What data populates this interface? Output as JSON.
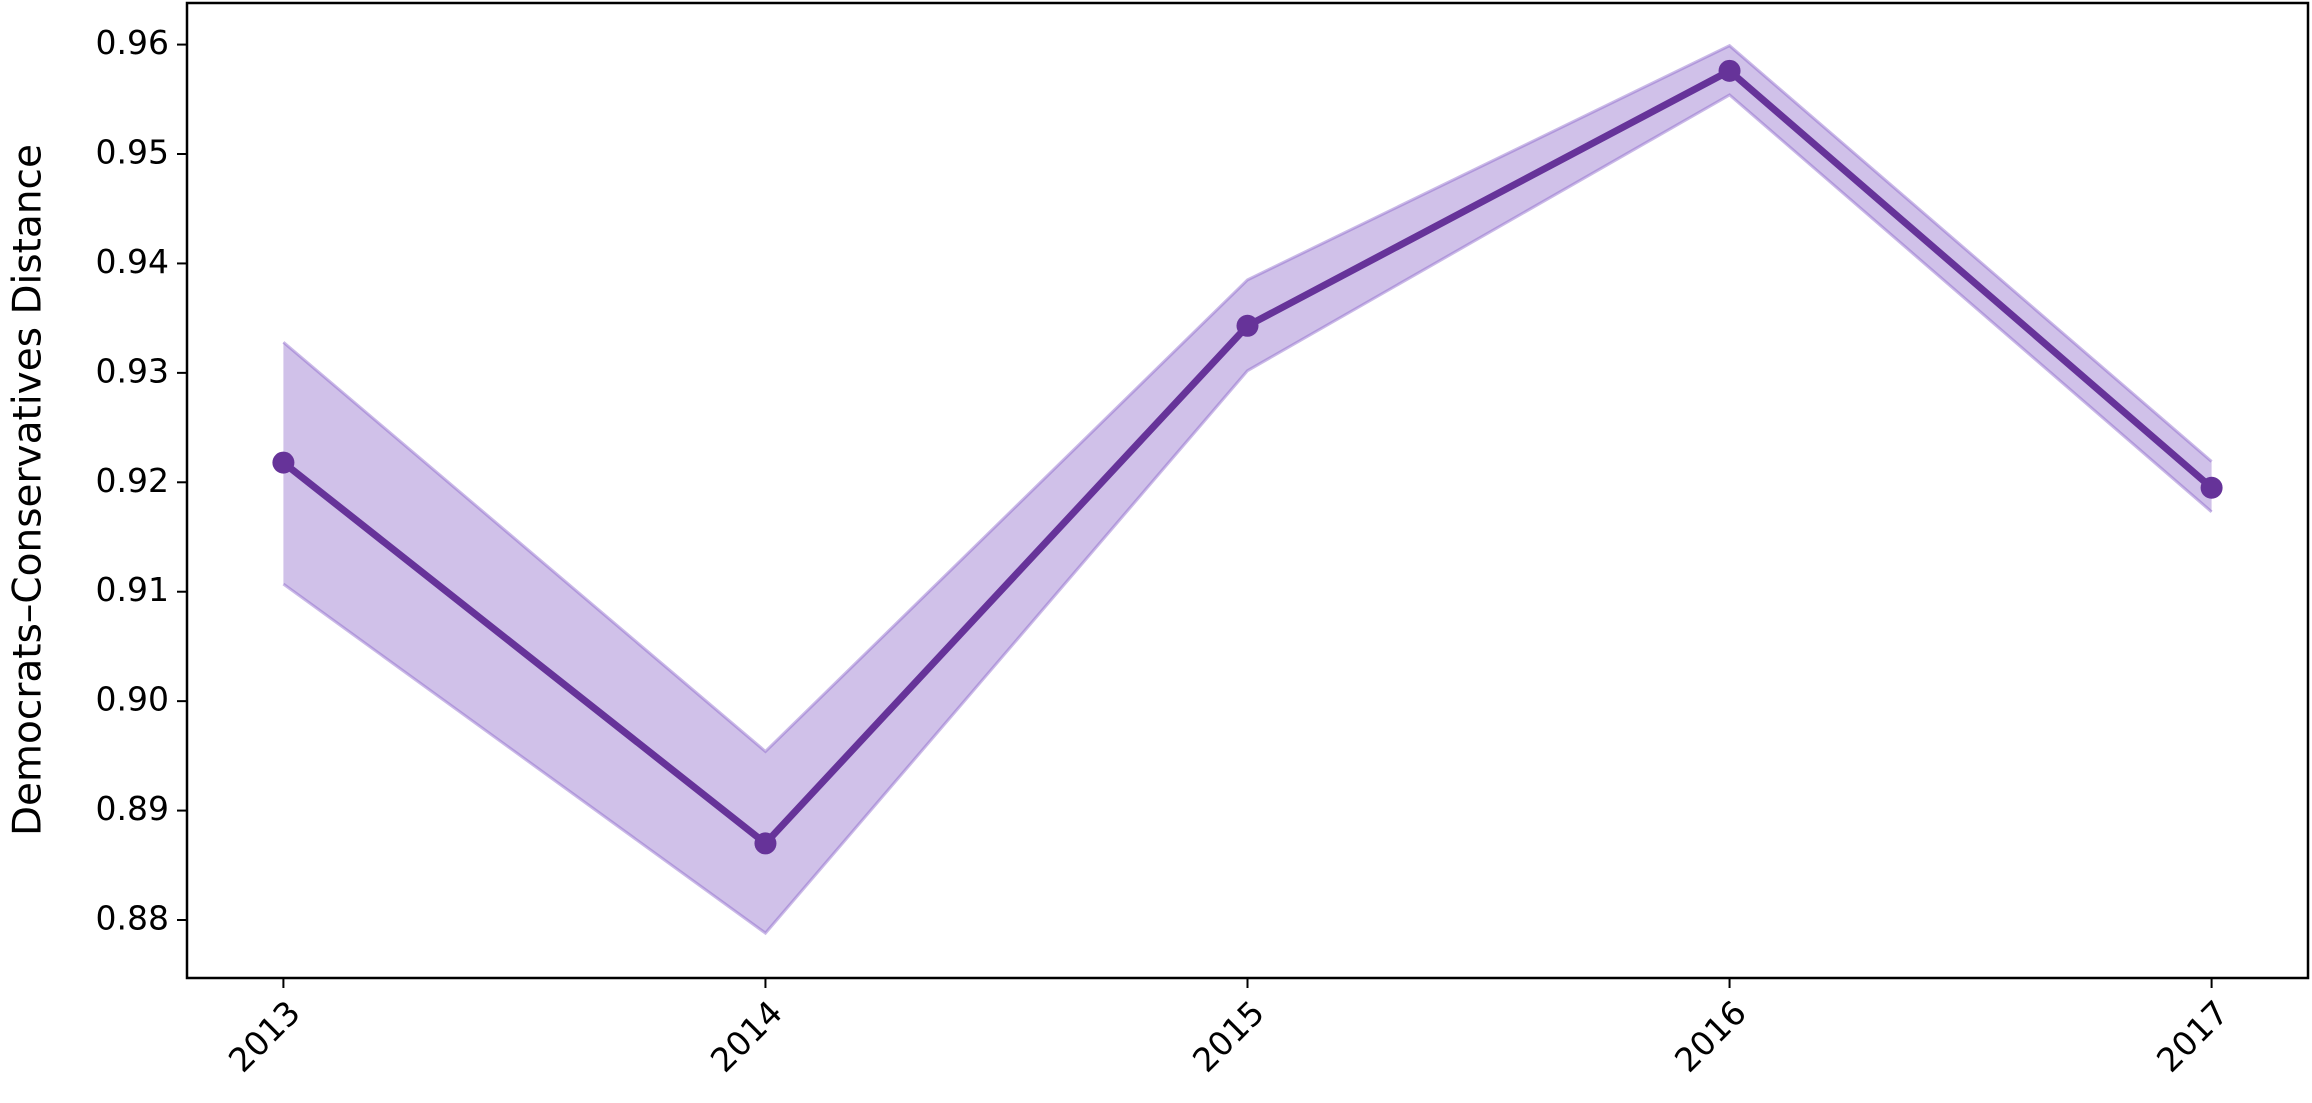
{
  "chart_data": {
    "type": "line",
    "y_label": "Democrats–Conservatives Distance",
    "x": [
      2013,
      2014,
      2015,
      2016,
      2017
    ],
    "series": [
      {
        "color": "#663399",
        "values": [
          0.9218,
          0.887,
          0.9343,
          0.9576,
          0.9195
        ],
        "lower": [
          0.9107,
          0.8788,
          0.9302,
          0.9554,
          0.9173
        ],
        "upper": [
          0.9328,
          0.8954,
          0.9385,
          0.9599,
          0.9219
        ],
        "band_color": "#8a63c9"
      }
    ],
    "xlim": [
      2012.8,
      2017.2
    ],
    "xticks": [
      2013,
      2014,
      2015,
      2016,
      2017
    ],
    "ylim": [
      0.8747,
      0.9638
    ],
    "yticks": [
      0.88,
      0.89,
      {
        "value": 0.9,
        "label": "0.90"
      },
      0.91,
      0.92,
      0.93,
      0.94,
      0.95,
      0.96
    ],
    "grid": false
  }
}
